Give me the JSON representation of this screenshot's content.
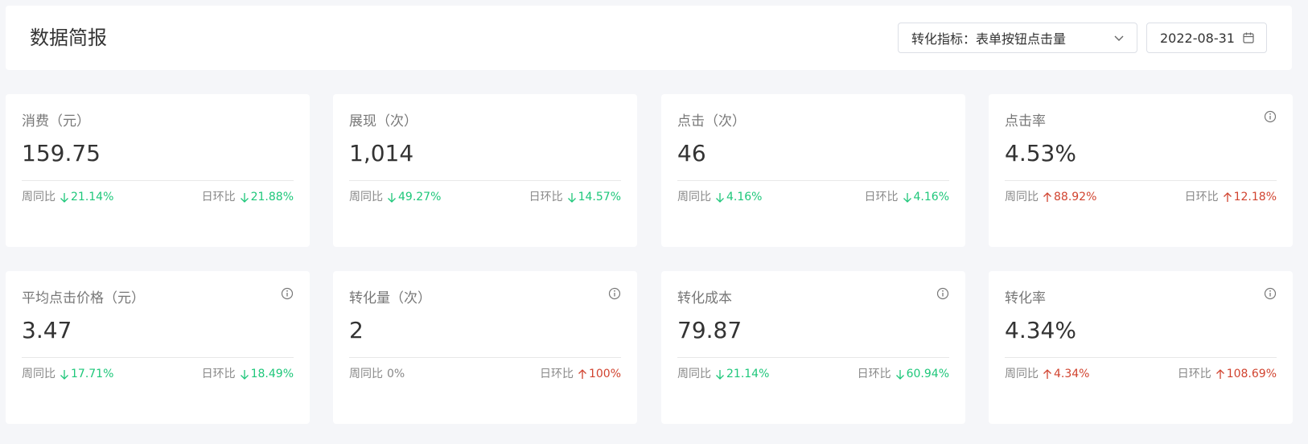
{
  "header": {
    "title": "数据简报",
    "metric_select": "转化指标：表单按钮点击量",
    "date": "2022-08-31"
  },
  "colors": {
    "down": "#1ec77a",
    "up": "#d1432f",
    "background": "#f5f6f9"
  },
  "cards": [
    {
      "label": "消费（元）",
      "value": "159.75",
      "info": false,
      "wow_label": "周同比",
      "wow": "21.14%",
      "wow_dir": "down",
      "dod_label": "日环比",
      "dod": "21.88%",
      "dod_dir": "down"
    },
    {
      "label": "展现（次）",
      "value": "1,014",
      "info": false,
      "wow_label": "周同比",
      "wow": "49.27%",
      "wow_dir": "down",
      "dod_label": "日环比",
      "dod": "14.57%",
      "dod_dir": "down"
    },
    {
      "label": "点击（次）",
      "value": "46",
      "info": false,
      "wow_label": "周同比",
      "wow": "4.16%",
      "wow_dir": "down",
      "dod_label": "日环比",
      "dod": "4.16%",
      "dod_dir": "down"
    },
    {
      "label": "点击率",
      "value": "4.53%",
      "info": true,
      "wow_label": "周同比",
      "wow": "88.92%",
      "wow_dir": "up",
      "dod_label": "日环比",
      "dod": "12.18%",
      "dod_dir": "up"
    },
    {
      "label": "平均点击价格（元）",
      "value": "3.47",
      "info": true,
      "wow_label": "周同比",
      "wow": "17.71%",
      "wow_dir": "down",
      "dod_label": "日环比",
      "dod": "18.49%",
      "dod_dir": "down"
    },
    {
      "label": "转化量（次）",
      "value": "2",
      "info": true,
      "wow_label": "周同比",
      "wow": "0%",
      "wow_dir": "flat",
      "dod_label": "日环比",
      "dod": "100%",
      "dod_dir": "up"
    },
    {
      "label": "转化成本",
      "value": "79.87",
      "info": true,
      "wow_label": "周同比",
      "wow": "21.14%",
      "wow_dir": "down",
      "dod_label": "日环比",
      "dod": "60.94%",
      "dod_dir": "down"
    },
    {
      "label": "转化率",
      "value": "4.34%",
      "info": true,
      "wow_label": "周同比",
      "wow": "4.34%",
      "wow_dir": "up",
      "dod_label": "日环比",
      "dod": "108.69%",
      "dod_dir": "up"
    }
  ]
}
